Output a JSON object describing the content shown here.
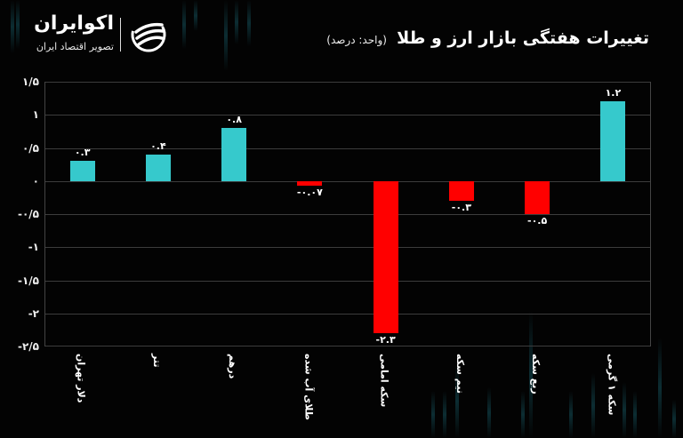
{
  "brand": {
    "name": "اکوایران",
    "tagline": "تصویر اقتصاد ایران"
  },
  "header": {
    "title": "تغییرات هفتگی بازار ارز و طلا",
    "unit": "(واحد: درصد)"
  },
  "colors": {
    "positive": "#36c9cc",
    "negative": "#ff0000",
    "background": "#030303",
    "grid": "#3c3c3c"
  },
  "chart_data": {
    "type": "bar",
    "title": "تغییرات هفتگی بازار ارز و طلا (واحد: درصد)",
    "xlabel": "",
    "ylabel": "درصد",
    "categories": [
      "دلار تهران",
      "تتر",
      "درهم",
      "طلای آب شده",
      "سکه امامی",
      "نیم سکه",
      "ربع سکه",
      "سکه ۱ گرمی"
    ],
    "values": [
      0.3,
      0.4,
      0.8,
      -0.07,
      -2.3,
      -0.3,
      -0.5,
      1.2
    ],
    "value_labels": [
      "۰.۳",
      "۰.۴",
      "۰.۸",
      "-۰.۰۷",
      "-۲.۳",
      "-۰.۳",
      "-۰.۵",
      "۱.۲"
    ],
    "ylim": [
      -2.5,
      1.5
    ],
    "yticks": [
      1.5,
      1,
      0.5,
      0,
      -0.5,
      -1,
      -1.5,
      -2,
      -2.5
    ],
    "ytick_labels": [
      "۱/۵",
      "۱",
      "۰/۵",
      "۰",
      "-۰/۵",
      "-۱",
      "-۱/۵",
      "-۲",
      "-۲/۵"
    ],
    "grid": true,
    "legend": "none"
  }
}
